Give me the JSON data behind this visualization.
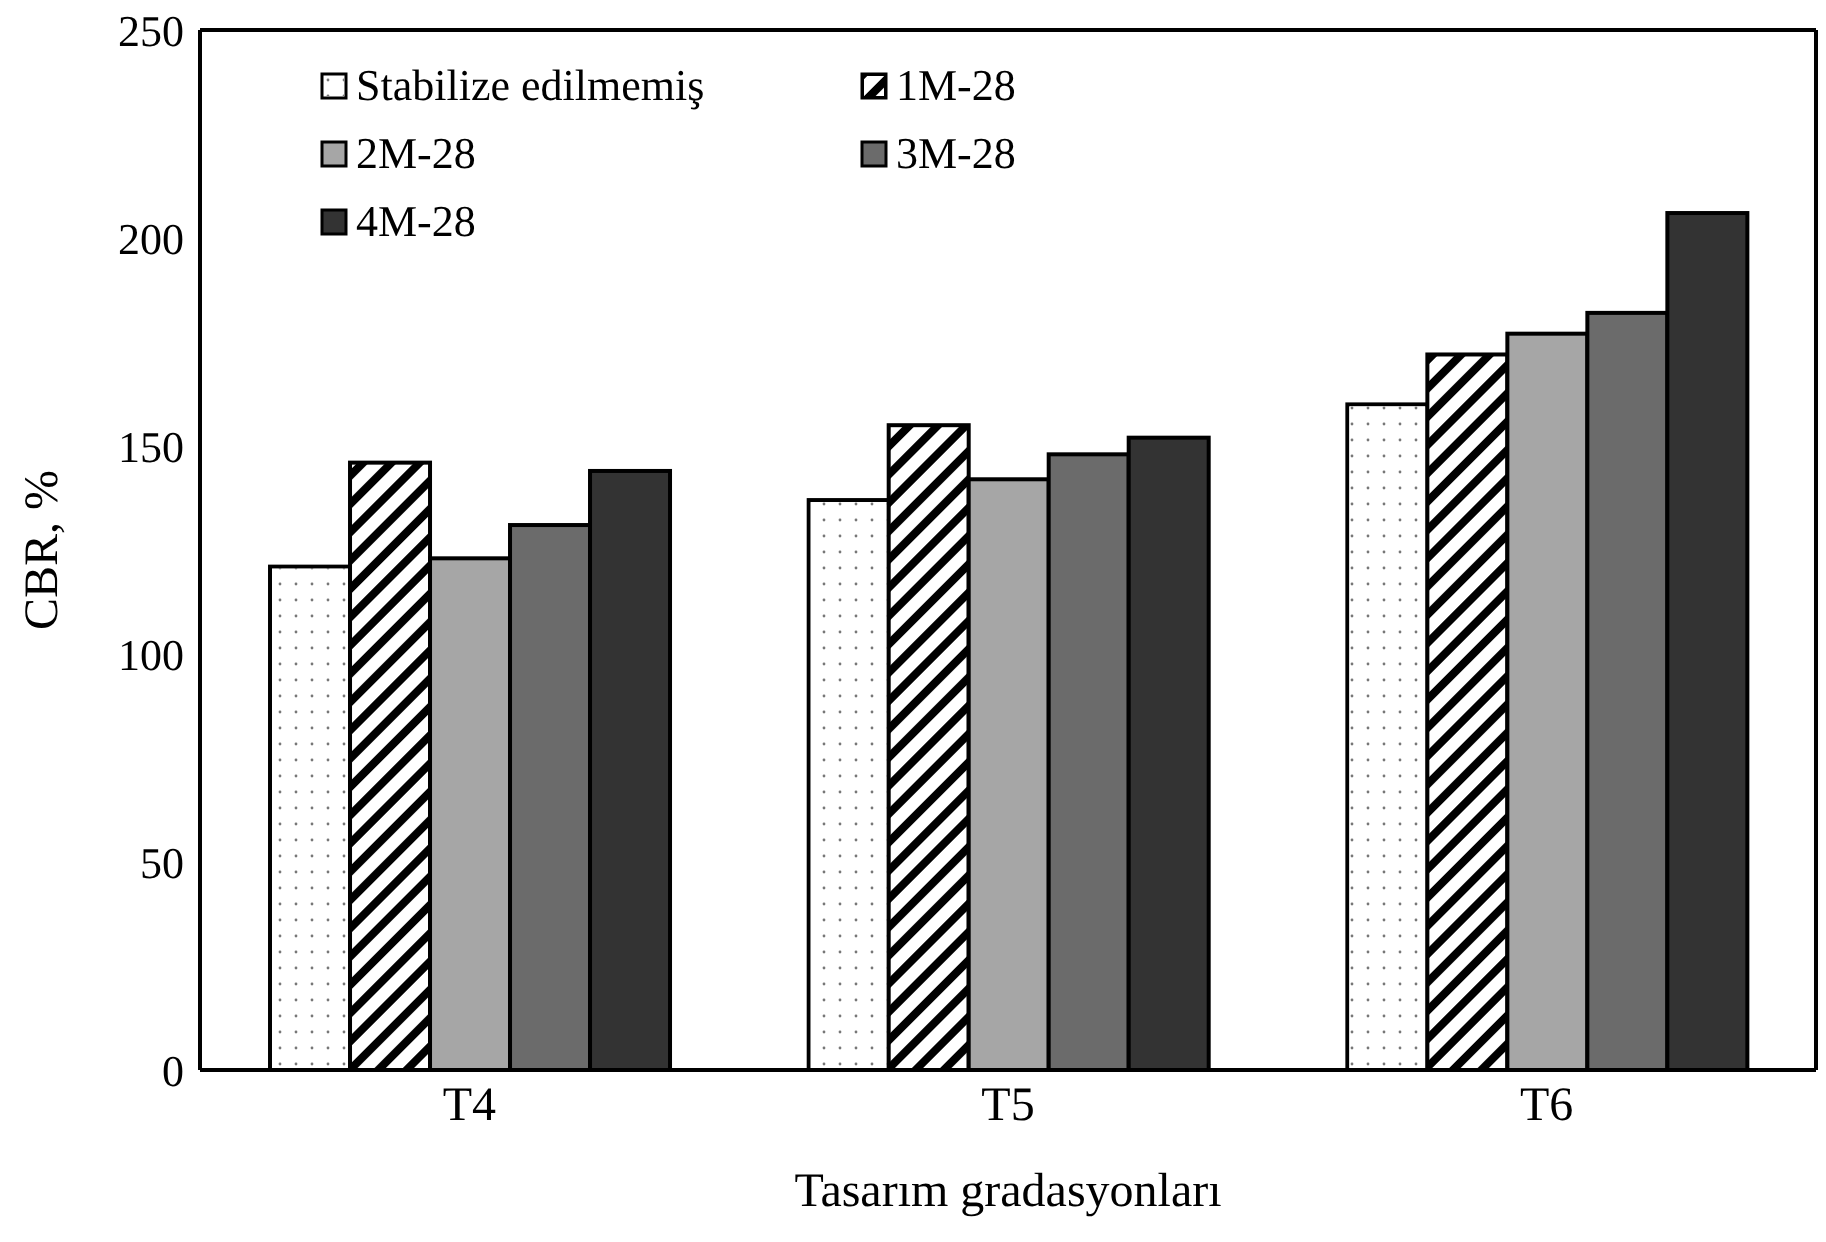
{
  "chart_data": {
    "type": "bar",
    "xlabel": "Tasarım gradasyonları",
    "ylabel": "CBR, %",
    "categories": [
      "T4",
      "T5",
      "T6"
    ],
    "series": [
      {
        "name": "Stabilize edilmemiş",
        "color": "#ffffff",
        "values": [
          121,
          137,
          160
        ]
      },
      {
        "name": "1M-28",
        "color": "#000000",
        "values": [
          146,
          155,
          172
        ]
      },
      {
        "name": "2M-28",
        "color": "#a6a6a6",
        "values": [
          123,
          142,
          177
        ]
      },
      {
        "name": "3M-28",
        "color": "#6b6b6b",
        "values": [
          131,
          148,
          182
        ]
      },
      {
        "name": "4M-28",
        "color": "#333333",
        "values": [
          144,
          152,
          206
        ]
      }
    ],
    "ylim": [
      0,
      250
    ],
    "yticks": [
      0,
      50,
      100,
      150,
      200,
      250
    ],
    "grid": false,
    "legend": "top left"
  }
}
